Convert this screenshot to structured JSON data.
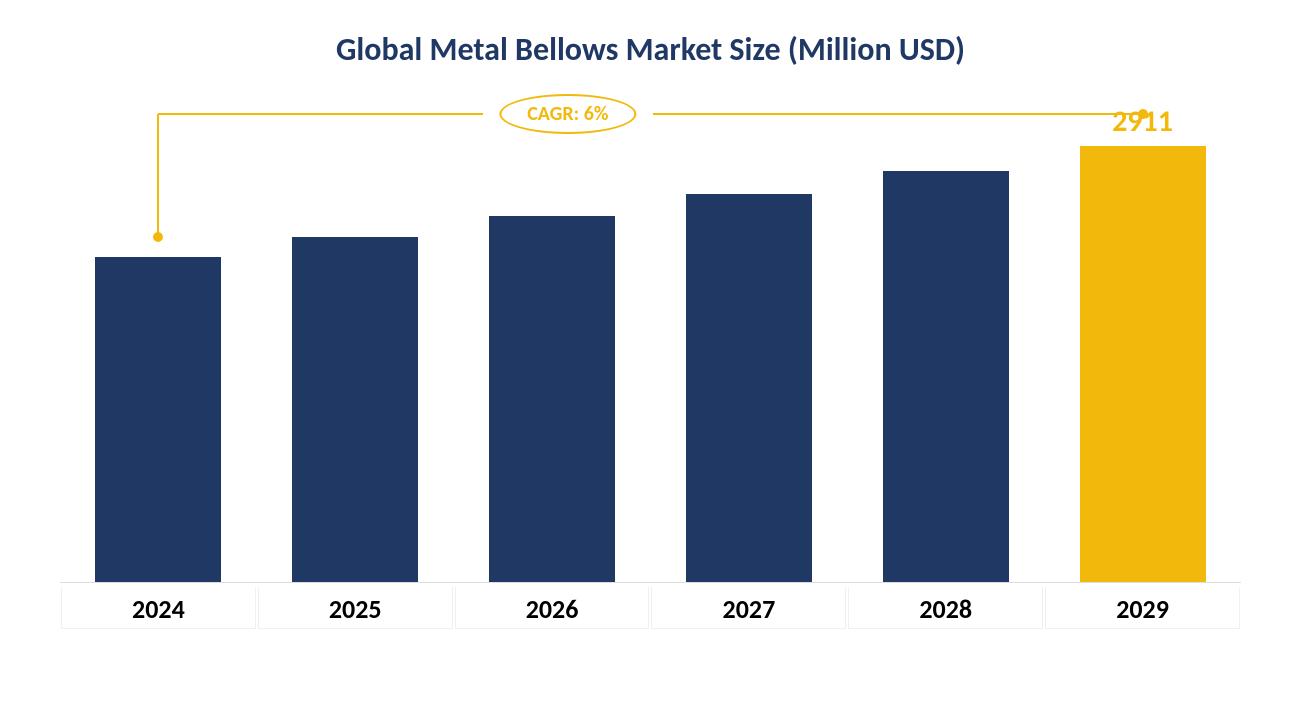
{
  "chart": {
    "type": "bar",
    "title": "Global Metal Bellows Market Size (Million USD)",
    "title_color": "#1f3864",
    "title_fontsize": 32,
    "title_fontweight": 700,
    "categories": [
      "2024",
      "2025",
      "2026",
      "2027",
      "2028",
      "2029"
    ],
    "values": [
      2176,
      2307,
      2446,
      2593,
      2749,
      2911
    ],
    "bar_colors": [
      "#1f3864",
      "#1f3864",
      "#1f3864",
      "#1f3864",
      "#1f3864",
      "#f2b90c"
    ],
    "highlight_value_label": "2911",
    "highlight_value_color": "#f2b90c",
    "highlight_value_fontsize": 30,
    "ymax": 3200,
    "background_color": "#ffffff",
    "baseline_color": "#dddddd",
    "xaxis_label_color": "#000000",
    "xaxis_label_fontsize": 26,
    "bar_width_ratio": 0.64
  },
  "cagr": {
    "label": "CAGR: 6%",
    "color": "#f2b90c",
    "fontsize": 20,
    "line_width": 2,
    "dot_radius": 5
  }
}
